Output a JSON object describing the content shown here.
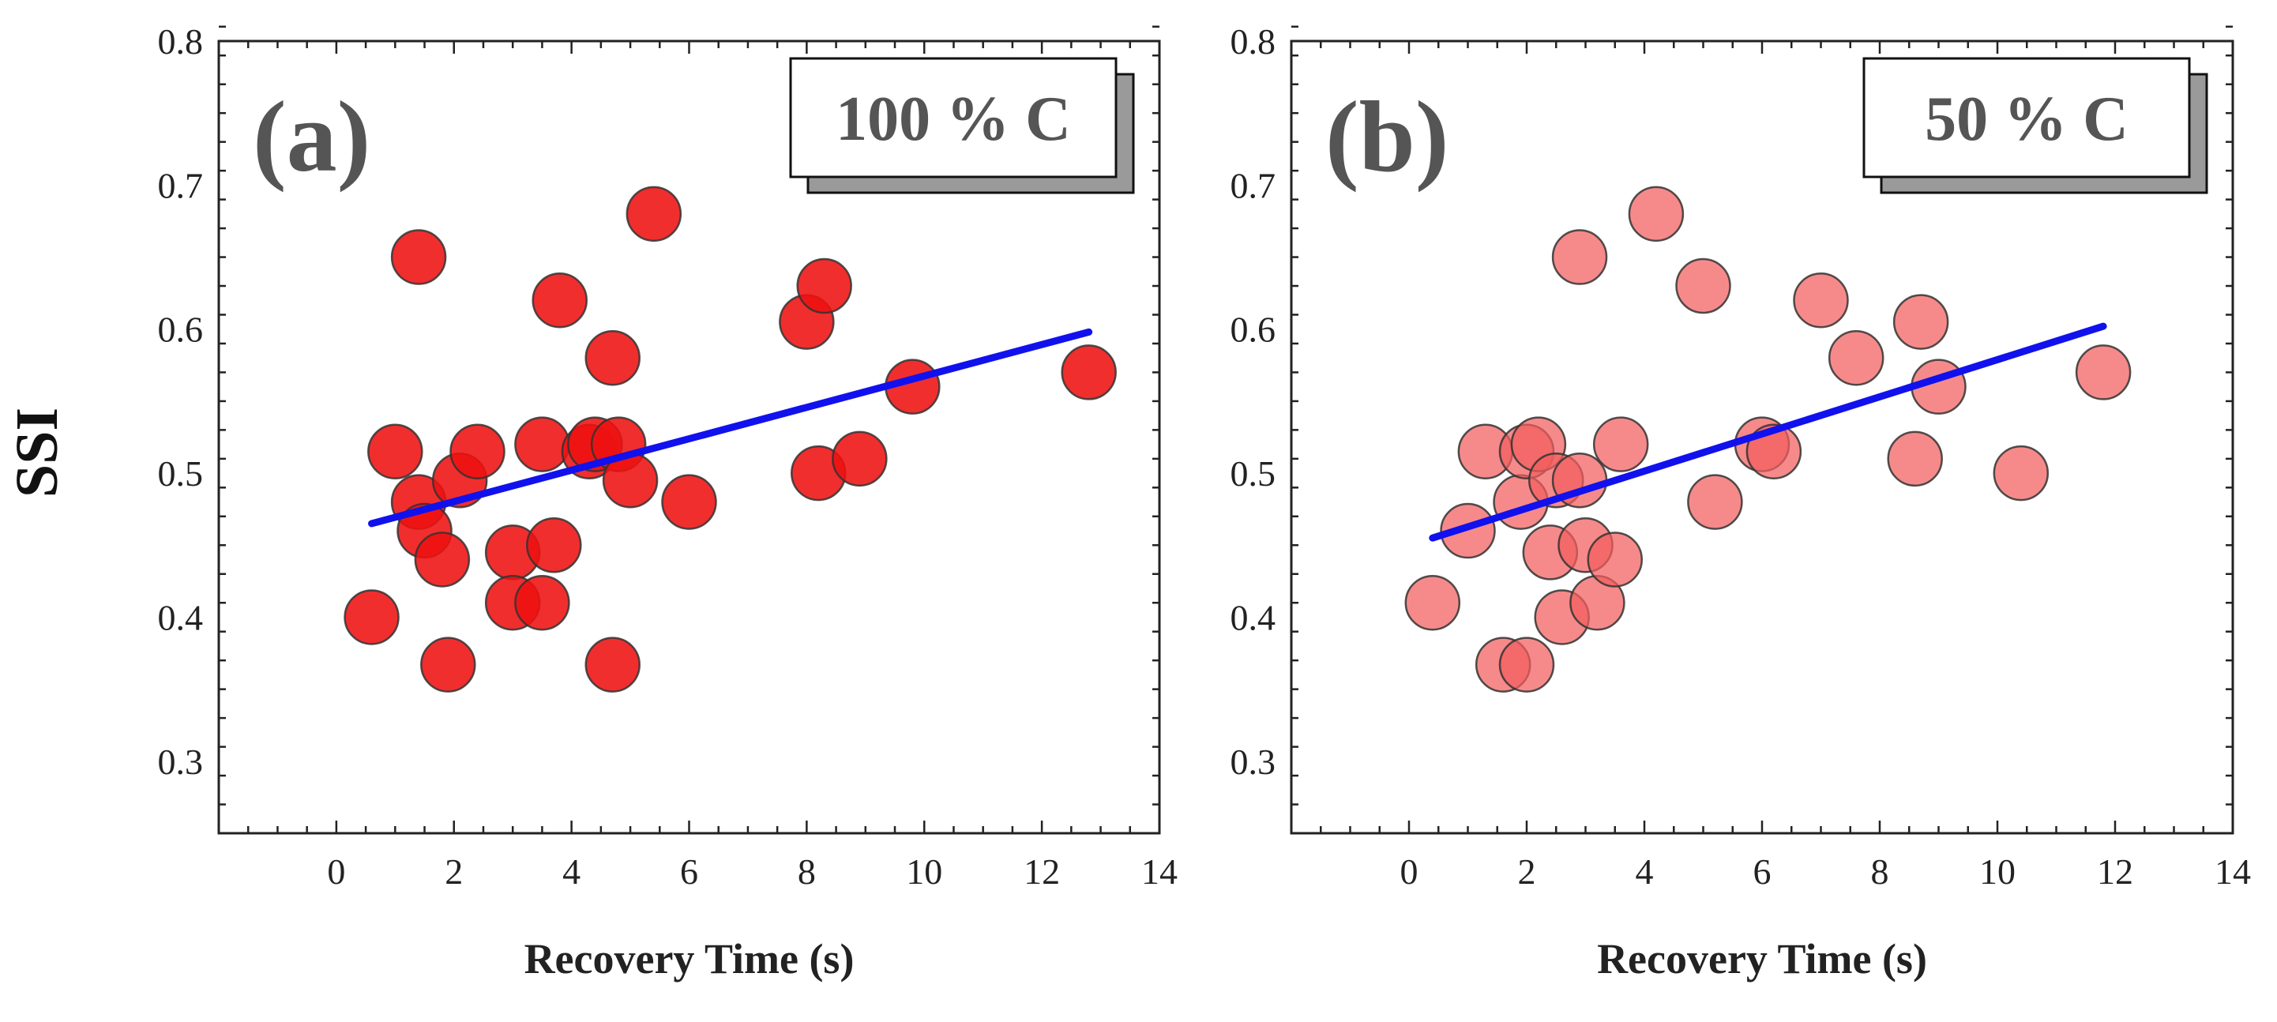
{
  "figure": {
    "y_axis_title": "SSI",
    "text_color": "#555555"
  },
  "chart_data": [
    {
      "type": "scatter",
      "panel_label": "(a)",
      "condition_label": "100 % C",
      "xlabel": "Recovery Time (s)",
      "ylabel": "SSI",
      "xlim": [
        -2,
        14
      ],
      "ylim": [
        0.25,
        0.8
      ],
      "x_ticks": [
        0,
        2,
        4,
        6,
        8,
        10,
        12,
        14
      ],
      "y_ticks": [
        0.3,
        0.4,
        0.5,
        0.6,
        0.7,
        0.8
      ],
      "x_tick_labels": [
        "0",
        "2",
        "4",
        "6",
        "8",
        "10",
        "12",
        "14"
      ],
      "y_tick_labels": [
        "0.3",
        "0.4",
        "0.5",
        "0.6",
        "0.7",
        "0.8"
      ],
      "marker_color": "#ee1111",
      "marker_opacity": 0.88,
      "line_color": "#1111ee",
      "legend": "top-right",
      "grid": false,
      "points": [
        {
          "x": 0.6,
          "y": 0.4
        },
        {
          "x": 1.0,
          "y": 0.515
        },
        {
          "x": 1.4,
          "y": 0.65
        },
        {
          "x": 1.4,
          "y": 0.48
        },
        {
          "x": 1.5,
          "y": 0.46
        },
        {
          "x": 1.8,
          "y": 0.44
        },
        {
          "x": 1.9,
          "y": 0.367
        },
        {
          "x": 2.1,
          "y": 0.495
        },
        {
          "x": 2.4,
          "y": 0.515
        },
        {
          "x": 3.0,
          "y": 0.445
        },
        {
          "x": 3.0,
          "y": 0.41
        },
        {
          "x": 3.5,
          "y": 0.41
        },
        {
          "x": 3.5,
          "y": 0.52
        },
        {
          "x": 3.7,
          "y": 0.45
        },
        {
          "x": 3.8,
          "y": 0.62
        },
        {
          "x": 4.3,
          "y": 0.515
        },
        {
          "x": 4.4,
          "y": 0.52
        },
        {
          "x": 4.7,
          "y": 0.58
        },
        {
          "x": 4.7,
          "y": 0.367
        },
        {
          "x": 4.8,
          "y": 0.52
        },
        {
          "x": 5.0,
          "y": 0.495
        },
        {
          "x": 5.4,
          "y": 0.68
        },
        {
          "x": 6.0,
          "y": 0.48
        },
        {
          "x": 8.0,
          "y": 0.605
        },
        {
          "x": 8.2,
          "y": 0.5
        },
        {
          "x": 8.3,
          "y": 0.63
        },
        {
          "x": 8.9,
          "y": 0.51
        },
        {
          "x": 9.8,
          "y": 0.56
        },
        {
          "x": 12.8,
          "y": 0.57
        }
      ],
      "trend_line": {
        "x": [
          0.6,
          12.8
        ],
        "y": [
          0.465,
          0.598
        ]
      }
    },
    {
      "type": "scatter",
      "panel_label": "(b)",
      "condition_label": "50 % C",
      "xlabel": "Recovery Time (s)",
      "ylabel": "",
      "xlim": [
        -2,
        14
      ],
      "ylim": [
        0.25,
        0.8
      ],
      "x_ticks": [
        0,
        2,
        4,
        6,
        8,
        10,
        12,
        14
      ],
      "y_ticks": [
        0.3,
        0.4,
        0.5,
        0.6,
        0.7,
        0.8
      ],
      "x_tick_labels": [
        "0",
        "2",
        "4",
        "6",
        "8",
        "10",
        "12",
        "14"
      ],
      "y_tick_labels": [
        "0.3",
        "0.4",
        "0.5",
        "0.6",
        "0.7",
        "0.8"
      ],
      "marker_color": "#f35d5d",
      "marker_opacity": 0.72,
      "line_color": "#1111ee",
      "legend": "top-right",
      "grid": false,
      "points": [
        {
          "x": 0.4,
          "y": 0.41
        },
        {
          "x": 1.0,
          "y": 0.46
        },
        {
          "x": 1.3,
          "y": 0.515
        },
        {
          "x": 1.6,
          "y": 0.367
        },
        {
          "x": 1.9,
          "y": 0.48
        },
        {
          "x": 2.0,
          "y": 0.367
        },
        {
          "x": 2.0,
          "y": 0.515
        },
        {
          "x": 2.2,
          "y": 0.52
        },
        {
          "x": 2.4,
          "y": 0.445
        },
        {
          "x": 2.5,
          "y": 0.495
        },
        {
          "x": 2.6,
          "y": 0.4
        },
        {
          "x": 2.9,
          "y": 0.495
        },
        {
          "x": 2.9,
          "y": 0.65
        },
        {
          "x": 3.0,
          "y": 0.45
        },
        {
          "x": 3.2,
          "y": 0.41
        },
        {
          "x": 3.5,
          "y": 0.44
        },
        {
          "x": 3.6,
          "y": 0.52
        },
        {
          "x": 4.2,
          "y": 0.68
        },
        {
          "x": 5.0,
          "y": 0.63
        },
        {
          "x": 5.2,
          "y": 0.48
        },
        {
          "x": 6.0,
          "y": 0.52
        },
        {
          "x": 6.2,
          "y": 0.515
        },
        {
          "x": 7.0,
          "y": 0.62
        },
        {
          "x": 7.6,
          "y": 0.58
        },
        {
          "x": 8.6,
          "y": 0.51
        },
        {
          "x": 8.7,
          "y": 0.605
        },
        {
          "x": 9.0,
          "y": 0.56
        },
        {
          "x": 10.4,
          "y": 0.5
        },
        {
          "x": 11.8,
          "y": 0.57
        }
      ],
      "trend_line": {
        "x": [
          0.4,
          11.8
        ],
        "y": [
          0.455,
          0.602
        ]
      }
    }
  ]
}
